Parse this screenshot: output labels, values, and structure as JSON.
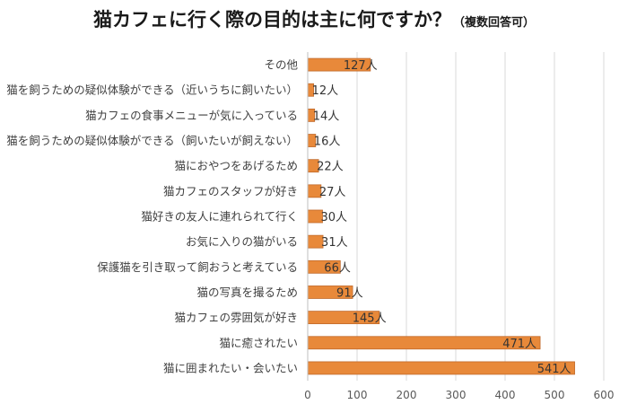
{
  "chart_data": {
    "type": "bar",
    "orientation": "horizontal",
    "title": "猫カフェに行く際の目的は主に何ですか？",
    "subtitle": "（複数回答可）",
    "categories": [
      "その他",
      "猫を飼うための疑似体験ができる（近いうちに飼いたい）",
      "猫カフェの食事メニューが気に入っている",
      "猫を飼うための疑似体験ができる（飼いたいが飼えない）",
      "猫におやつをあげるため",
      "猫カフェのスタッフが好き",
      "猫好きの友人に連れられて行く",
      "お気に入りの猫がいる",
      "保護猫を引き取って飼おうと考えている",
      "猫の写真を撮るため",
      "猫カフェの雰囲気が好き",
      "猫に癒されたい",
      "猫に囲まれたい・会いたい"
    ],
    "values": [
      127,
      12,
      14,
      16,
      22,
      27,
      30,
      31,
      66,
      91,
      145,
      471,
      541
    ],
    "value_labels": [
      "127人",
      "12人",
      "14人",
      "16人",
      "22人",
      "27人",
      "30人",
      "31人",
      "66人",
      "91人",
      "145人",
      "471人",
      "541人"
    ],
    "xlim": [
      0,
      600
    ],
    "xticks": [
      "0",
      "100",
      "200",
      "300",
      "400",
      "500",
      "600"
    ],
    "grid": true,
    "bar_color": "#e8893a",
    "bar_edge_color": "#c0692a"
  }
}
